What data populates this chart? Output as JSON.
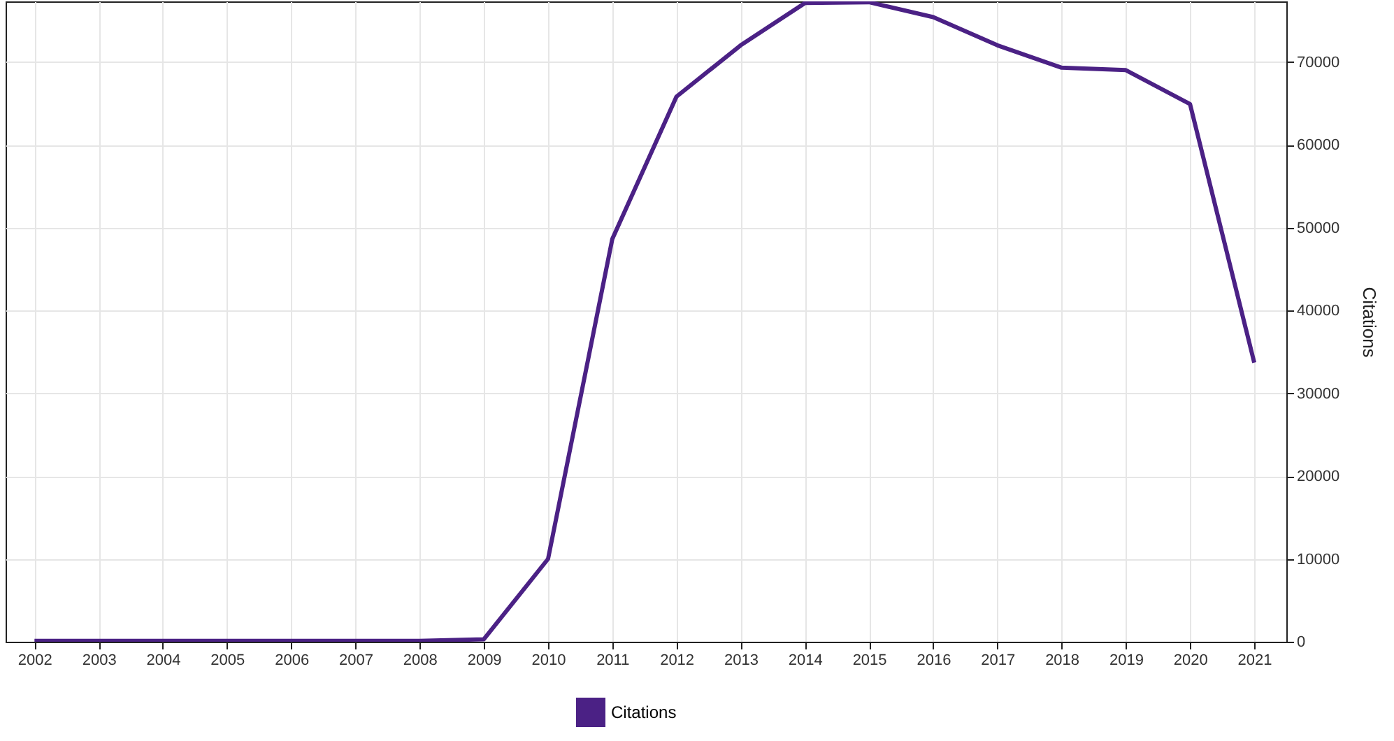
{
  "chart_data": {
    "type": "line",
    "ylabel": "Citations",
    "x": [
      2002,
      2003,
      2004,
      2005,
      2006,
      2007,
      2008,
      2009,
      2010,
      2011,
      2012,
      2013,
      2014,
      2015,
      2016,
      2017,
      2018,
      2019,
      2020,
      2021
    ],
    "series": [
      {
        "name": "Citations",
        "color": "#4b2185",
        "values": [
          100,
          100,
          100,
          100,
          100,
          100,
          100,
          300,
          10000,
          48600,
          65800,
          72000,
          77100,
          77200,
          75400,
          72000,
          69300,
          69000,
          64900,
          33700
        ]
      }
    ],
    "xlim": [
      2001.55,
      2021.5
    ],
    "xticks": [
      2002,
      2003,
      2004,
      2005,
      2006,
      2007,
      2008,
      2009,
      2010,
      2011,
      2012,
      2013,
      2014,
      2015,
      2016,
      2017,
      2018,
      2019,
      2020,
      2021
    ],
    "ylim": [
      0,
      77300
    ],
    "yticks": [
      0,
      10000,
      20000,
      30000,
      40000,
      50000,
      60000,
      70000
    ],
    "grid": true,
    "legend": "bottom",
    "marker": "none",
    "line_style": "solid"
  }
}
